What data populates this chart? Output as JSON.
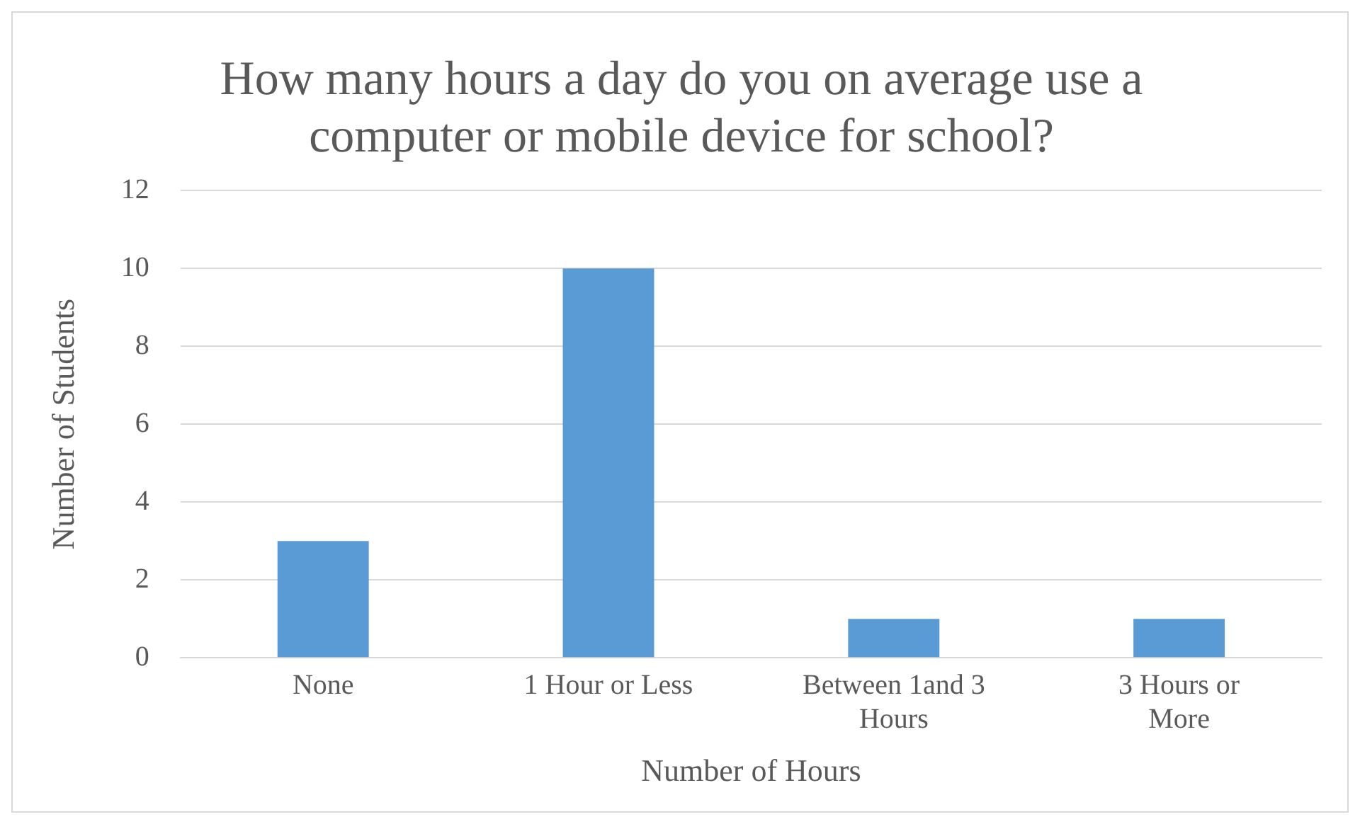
{
  "chart_data": {
    "type": "bar",
    "title": "How many hours a day do you on average use a computer or mobile device for school?",
    "xlabel": "Number of Hours",
    "ylabel": "Number of Students",
    "categories": [
      "None",
      "1 Hour or Less",
      "Between 1and 3 Hours",
      "3 Hours or More"
    ],
    "values": [
      3,
      10,
      1,
      1
    ],
    "color": "#5b9bd5",
    "ylim": [
      0,
      12
    ],
    "yticks": [
      0,
      2,
      4,
      6,
      8,
      10,
      12
    ],
    "grid": "y",
    "legend": false
  }
}
